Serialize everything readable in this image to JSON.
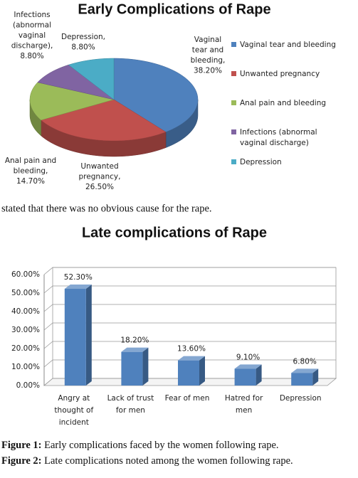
{
  "chart_data": [
    {
      "type": "pie",
      "title": "Early Complications of Rape",
      "categories": [
        "Vaginal tear and bleeding",
        "Unwanted pregnancy",
        "Anal pain and bleeding",
        "Infections (abnormal vaginal discharge)",
        "Depression"
      ],
      "values": [
        38.2,
        26.5,
        14.7,
        8.8,
        8.8
      ],
      "value_labels": [
        "Vaginal tear and bleeding, 38.20%",
        "Unwanted pregnancy, 26.50%",
        "Anal pain and bleeding, 14.70%",
        "Infections (abnormal vaginal discharge), 8.80%",
        "Depression, 8.80%"
      ],
      "colors": [
        "#4f81bd",
        "#c0504d",
        "#9bbb59",
        "#8064a2",
        "#4bacc6"
      ],
      "legend": "right"
    },
    {
      "type": "bar",
      "title": "Late complications of Rape",
      "categories": [
        "Angry at thought of incident",
        "Lack of trust for men",
        "Fear of men",
        "Hatred for men",
        "Depression"
      ],
      "values": [
        52.3,
        18.2,
        13.6,
        9.1,
        6.8
      ],
      "value_labels": [
        "52.30%",
        "18.20%",
        "13.60%",
        "9.10%",
        "6.80%"
      ],
      "color": "#4f81bd",
      "ylim": [
        0,
        60
      ],
      "yticks": [
        {
          "value": 0,
          "label": "0.00%"
        },
        {
          "value": 10,
          "label": "10.00%"
        },
        {
          "value": 20,
          "label": "20.00%"
        },
        {
          "value": 30,
          "label": "30.00%"
        },
        {
          "value": 40,
          "label": "40.00%"
        },
        {
          "value": 50,
          "label": "50.00%"
        },
        {
          "value": 60,
          "label": "60.00%"
        }
      ],
      "grid": true
    }
  ],
  "text": "stated that there was no obvious cause for the rape.",
  "captions": [
    {
      "label": "Figure 1:",
      "text": "Early complications faced by the women following rape."
    },
    {
      "label": "Figure 2:",
      "text": "Late complications noted among the women following rape."
    }
  ]
}
